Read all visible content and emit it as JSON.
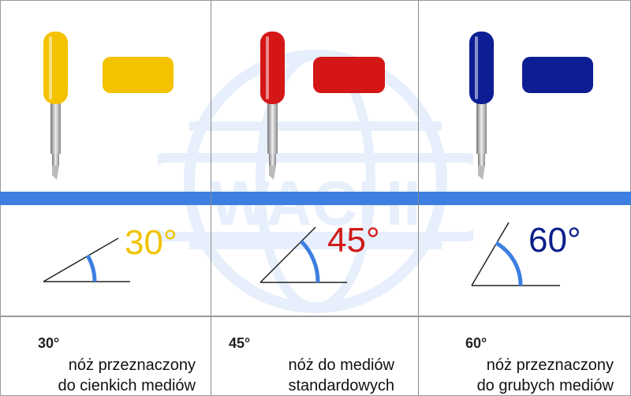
{
  "watermark": "WACHI",
  "columns": [
    {
      "angle": "30°",
      "angle_color": "#f0c300",
      "body_color": "#f5c200",
      "label": "30°",
      "line1": "nóż przeznaczony",
      "line2": "do cienkich mediów"
    },
    {
      "angle": "45°",
      "angle_color": "#d11a1a",
      "body_color": "#d41616",
      "label": "45°",
      "line1": "nóż do mediów",
      "line2": "standardowych"
    },
    {
      "angle": "60°",
      "angle_color": "#0a1f8c",
      "body_color": "#0d1e94",
      "label": "60°",
      "line1": "nóż przeznaczony",
      "line2": "do grubych mediów"
    }
  ],
  "accent_band_color": "#3c7fe0"
}
